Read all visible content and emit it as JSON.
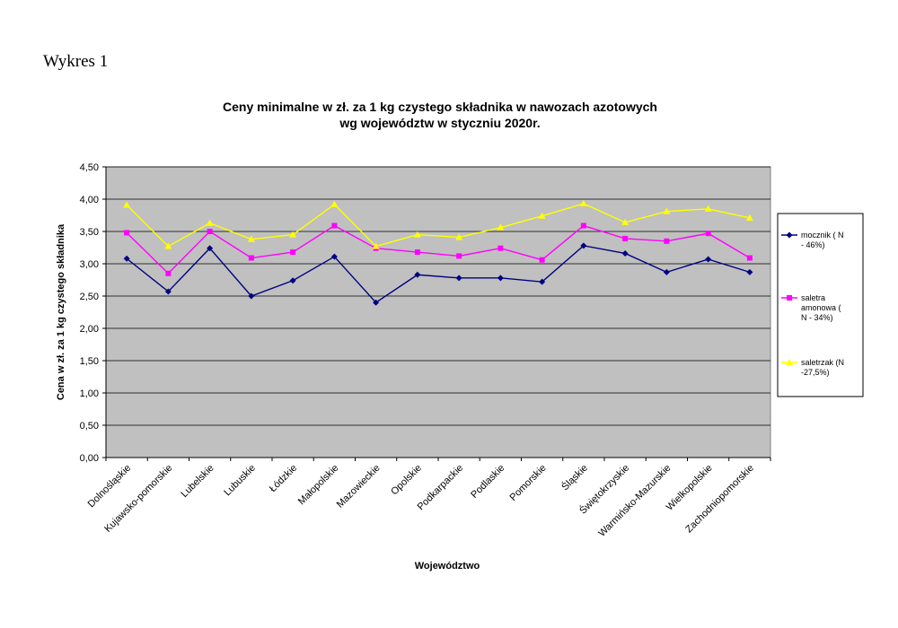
{
  "figure_label": "Wykres 1",
  "chart_data": {
    "type": "line",
    "title_line1": "Ceny minimalne   w zł. za 1 kg czystego składnika w nawozach azotowych",
    "title_line2": "wg województw w styczniu 2020r.",
    "xlabel": "Województwo",
    "ylabel": "Cena w zł. za 1 kg czystego składnika",
    "ylim": [
      0,
      4.5
    ],
    "yticks": [
      "0,00",
      "0,50",
      "1,00",
      "1,50",
      "2,00",
      "2,50",
      "3,00",
      "3,50",
      "4,00",
      "4,50"
    ],
    "grid": true,
    "legend_position": "right",
    "categories": [
      "Dolnośląskie",
      "Kujawsko-pomorskie",
      "Lubelskie",
      "Lubuskie",
      "Łódzkie",
      "Małopolskie",
      "Mazowieckie",
      "Opolskie",
      "Podkarpackie",
      "Podlaskie",
      "Pomorskie",
      "Śląskie",
      "Świętokrzyskie",
      "Warmińsko-Mazurskie",
      "Wielkopolskie",
      "Zachodniopomorskie"
    ],
    "series": [
      {
        "name_lines": [
          "mocznik ( N",
          "- 46%)"
        ],
        "color": "#000080",
        "marker": "diamond",
        "values": [
          3.08,
          2.57,
          3.24,
          2.5,
          2.74,
          3.11,
          2.4,
          2.83,
          2.78,
          2.78,
          2.72,
          3.28,
          3.16,
          2.87,
          3.07,
          2.87
        ]
      },
      {
        "name_lines": [
          "saletra",
          "amonowa (",
          "N - 34%)"
        ],
        "color": "#ff00ff",
        "marker": "square",
        "values": [
          3.48,
          2.85,
          3.5,
          3.09,
          3.18,
          3.59,
          3.24,
          3.18,
          3.12,
          3.24,
          3.06,
          3.59,
          3.39,
          3.35,
          3.47,
          3.09
        ]
      },
      {
        "name_lines": [
          "saletrzak (N",
          "-27,5%)"
        ],
        "color": "#ffff00",
        "marker": "triangle",
        "values": [
          3.91,
          3.27,
          3.63,
          3.38,
          3.45,
          3.92,
          3.27,
          3.45,
          3.41,
          3.56,
          3.74,
          3.93,
          3.64,
          3.81,
          3.85,
          3.71
        ]
      }
    ]
  }
}
